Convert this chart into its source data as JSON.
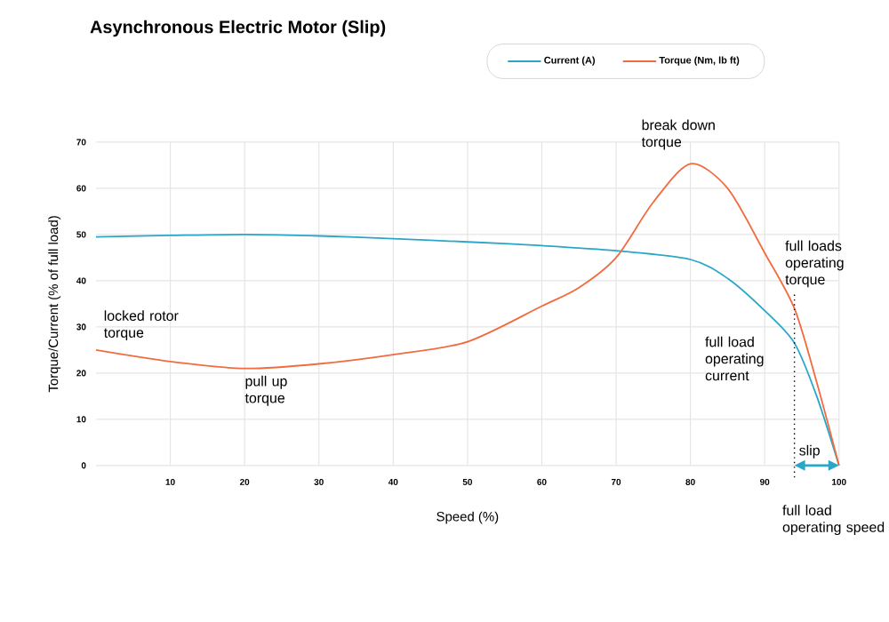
{
  "chart_data": {
    "type": "line",
    "title": "Asynchronous Electric Motor (Slip)",
    "xlabel": "Speed (%)",
    "ylabel": "Torque/Current (% of full load)",
    "series": [
      {
        "name": "Current (A)",
        "color": "#2aa6c8",
        "x": [
          0,
          10,
          20,
          30,
          40,
          50,
          60,
          70,
          80,
          85,
          90,
          94,
          97,
          100
        ],
        "values": [
          49.5,
          49.8,
          50,
          49.7,
          49.1,
          48.4,
          47.6,
          46.5,
          44.6,
          40.5,
          33.5,
          26.5,
          15,
          0
        ]
      },
      {
        "name": "Torque (Nm, lb ft)",
        "color": "#f26b3e",
        "x": [
          0,
          10,
          20,
          30,
          40,
          50,
          60,
          65,
          70,
          75,
          80,
          85,
          90,
          94,
          97,
          100
        ],
        "values": [
          25,
          22.5,
          21,
          22,
          24,
          26.8,
          34.5,
          38.5,
          45,
          57,
          65.3,
          60,
          46,
          34,
          18,
          0
        ]
      }
    ],
    "xlim": [
      0,
      100
    ],
    "ylim": [
      0,
      70
    ],
    "xticks": [
      10,
      20,
      30,
      40,
      50,
      60,
      70,
      80,
      90,
      100
    ],
    "yticks": [
      0,
      10,
      20,
      30,
      40,
      50,
      60,
      70
    ],
    "grid": true,
    "legend": "top",
    "marker": "none",
    "line_style": "solid",
    "ref_lines": [
      {
        "axis": "x",
        "value": 94,
        "label": "full load operating speed",
        "line_style": "dotted",
        "color": "#000000"
      }
    ],
    "annotations": [
      {
        "text": "locked rotor torque",
        "x": 0,
        "y": 25
      },
      {
        "text": "pull up torque",
        "x": 20,
        "y": 21
      },
      {
        "text": "break down torque",
        "x": 80,
        "y": 65.3
      },
      {
        "text": "full loads operating torque",
        "x": 94,
        "y": 34
      },
      "full load operating current",
      "slip"
    ]
  }
}
